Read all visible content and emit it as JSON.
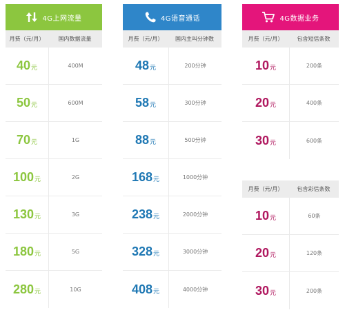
{
  "colors": {
    "data_accent": "#8cc63f",
    "voice_accent": "#2f86c9",
    "sms_accent": "#e4157b",
    "header_row_bg": "#ececec"
  },
  "data_plan": {
    "icon": "up-down-arrows-icon",
    "title": "4G上网流量",
    "col_price": "月费（元/月）",
    "col_value": "国内数据流量",
    "rows": [
      {
        "price": "40",
        "unit": "元",
        "value": "400M"
      },
      {
        "price": "50",
        "unit": "元",
        "value": "600M"
      },
      {
        "price": "70",
        "unit": "元",
        "value": "1G"
      },
      {
        "price": "100",
        "unit": "元",
        "value": "2G"
      },
      {
        "price": "130",
        "unit": "元",
        "value": "3G"
      },
      {
        "price": "180",
        "unit": "元",
        "value": "5G"
      },
      {
        "price": "280",
        "unit": "元",
        "value": "10G"
      }
    ]
  },
  "voice_plan": {
    "icon": "phone-icon",
    "title": "4G语音通话",
    "col_price": "月费（元/月）",
    "col_value": "国内主叫分钟数",
    "rows": [
      {
        "price": "48",
        "unit": "元",
        "value": "200分钟"
      },
      {
        "price": "58",
        "unit": "元",
        "value": "300分钟"
      },
      {
        "price": "88",
        "unit": "元",
        "value": "500分钟"
      },
      {
        "price": "168",
        "unit": "元",
        "value": "1000分钟"
      },
      {
        "price": "238",
        "unit": "元",
        "value": "2000分钟"
      },
      {
        "price": "328",
        "unit": "元",
        "value": "3000分钟"
      },
      {
        "price": "408",
        "unit": "元",
        "value": "4000分钟"
      }
    ]
  },
  "sms_plan": {
    "icon": "shopping-cart-icon",
    "title": "4G数据业务",
    "col_price": "月费（元/月）",
    "col_value": "包含短信条数",
    "rows": [
      {
        "price": "10",
        "unit": "元",
        "value": "200条"
      },
      {
        "price": "20",
        "unit": "元",
        "value": "400条"
      },
      {
        "price": "30",
        "unit": "元",
        "value": "600条"
      }
    ]
  },
  "mms_plan": {
    "col_price": "月费（元/月）",
    "col_value": "包含彩信条数",
    "rows": [
      {
        "price": "10",
        "unit": "元",
        "value": "60条"
      },
      {
        "price": "20",
        "unit": "元",
        "value": "120条"
      },
      {
        "price": "30",
        "unit": "元",
        "value": "200条"
      }
    ]
  }
}
